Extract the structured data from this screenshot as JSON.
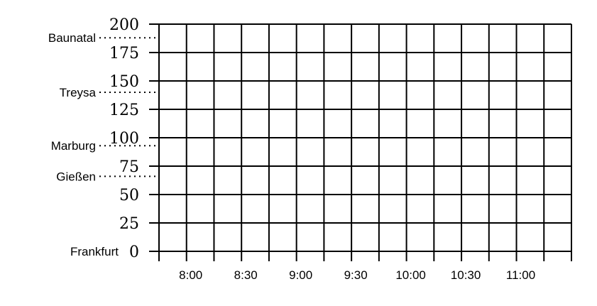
{
  "chart_data": {
    "type": "table",
    "title": "",
    "xlabel": "",
    "ylabel": "",
    "ylim": [
      0,
      200
    ],
    "y_ticks": [
      {
        "value": 0,
        "label": "0"
      },
      {
        "value": 25,
        "label": "25"
      },
      {
        "value": 50,
        "label": "50"
      },
      {
        "value": 75,
        "label": "75"
      },
      {
        "value": 100,
        "label": "100"
      },
      {
        "value": 125,
        "label": "125"
      },
      {
        "value": 150,
        "label": "150"
      },
      {
        "value": 175,
        "label": "175"
      },
      {
        "value": 200,
        "label": "200"
      }
    ],
    "xlim": [
      "7:45",
      "11:30"
    ],
    "x_grid_interval_minutes": 15,
    "x_ticks": [
      {
        "value": "8:00",
        "label": "8:00"
      },
      {
        "value": "8:30",
        "label": "8:30"
      },
      {
        "value": "9:00",
        "label": "9:00"
      },
      {
        "value": "9:30",
        "label": "9:30"
      },
      {
        "value": "10:00",
        "label": "10:00"
      },
      {
        "value": "10:30",
        "label": "10:30"
      },
      {
        "value": "11:00",
        "label": "11:00"
      }
    ],
    "stations": [
      {
        "name": "Frankfurt",
        "km": 0
      },
      {
        "name": "Gießen",
        "km": 66
      },
      {
        "name": "Marburg",
        "km": 93
      },
      {
        "name": "Treysa",
        "km": 140
      },
      {
        "name": "Baunatal",
        "km": 188
      }
    ],
    "grid": true
  }
}
